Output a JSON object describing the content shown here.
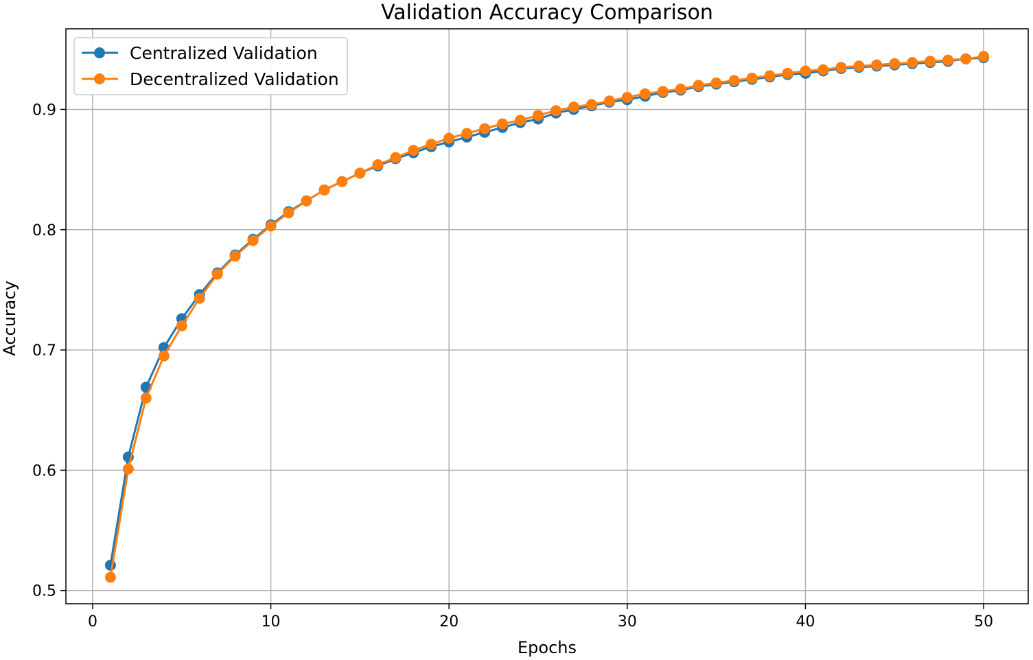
{
  "chart_data": {
    "type": "line",
    "title": "Validation Accuracy Comparison",
    "xlabel": "Epochs",
    "ylabel": "Accuracy",
    "xlim": [
      -1.5,
      52.5
    ],
    "ylim": [
      0.489,
      0.967
    ],
    "xticks": [
      0,
      10,
      20,
      30,
      40,
      50
    ],
    "yticks": [
      0.5,
      0.6,
      0.7,
      0.8,
      0.9
    ],
    "xtick_labels": [
      "0",
      "10",
      "20",
      "30",
      "40",
      "50"
    ],
    "ytick_labels": [
      "0.5",
      "0.6",
      "0.7",
      "0.8",
      "0.9"
    ],
    "grid": true,
    "legend_position": "top-left",
    "x": [
      1,
      2,
      3,
      4,
      5,
      6,
      7,
      8,
      9,
      10,
      11,
      12,
      13,
      14,
      15,
      16,
      17,
      18,
      19,
      20,
      21,
      22,
      23,
      24,
      25,
      26,
      27,
      28,
      29,
      30,
      31,
      32,
      33,
      34,
      35,
      36,
      37,
      38,
      39,
      40,
      41,
      42,
      43,
      44,
      45,
      46,
      47,
      48,
      49,
      50
    ],
    "series": [
      {
        "name": "Centralized Validation",
        "color": "#1f77b4",
        "values": [
          0.521,
          0.611,
          0.669,
          0.702,
          0.726,
          0.746,
          0.764,
          0.779,
          0.792,
          0.804,
          0.815,
          0.824,
          0.833,
          0.84,
          0.847,
          0.853,
          0.859,
          0.864,
          0.869,
          0.873,
          0.877,
          0.881,
          0.885,
          0.889,
          0.892,
          0.897,
          0.9,
          0.903,
          0.906,
          0.908,
          0.911,
          0.914,
          0.916,
          0.919,
          0.921,
          0.923,
          0.925,
          0.927,
          0.929,
          0.93,
          0.932,
          0.934,
          0.935,
          0.936,
          0.937,
          0.938,
          0.939,
          0.94,
          0.942,
          0.943
        ]
      },
      {
        "name": "Decentralized Validation",
        "color": "#ff7f0e",
        "values": [
          0.511,
          0.601,
          0.66,
          0.695,
          0.72,
          0.743,
          0.763,
          0.778,
          0.791,
          0.803,
          0.814,
          0.824,
          0.833,
          0.84,
          0.847,
          0.854,
          0.86,
          0.866,
          0.871,
          0.876,
          0.88,
          0.884,
          0.888,
          0.891,
          0.895,
          0.899,
          0.902,
          0.904,
          0.907,
          0.91,
          0.913,
          0.915,
          0.917,
          0.92,
          0.922,
          0.924,
          0.926,
          0.928,
          0.93,
          0.932,
          0.933,
          0.935,
          0.936,
          0.937,
          0.938,
          0.939,
          0.94,
          0.941,
          0.942,
          0.944
        ]
      }
    ]
  }
}
